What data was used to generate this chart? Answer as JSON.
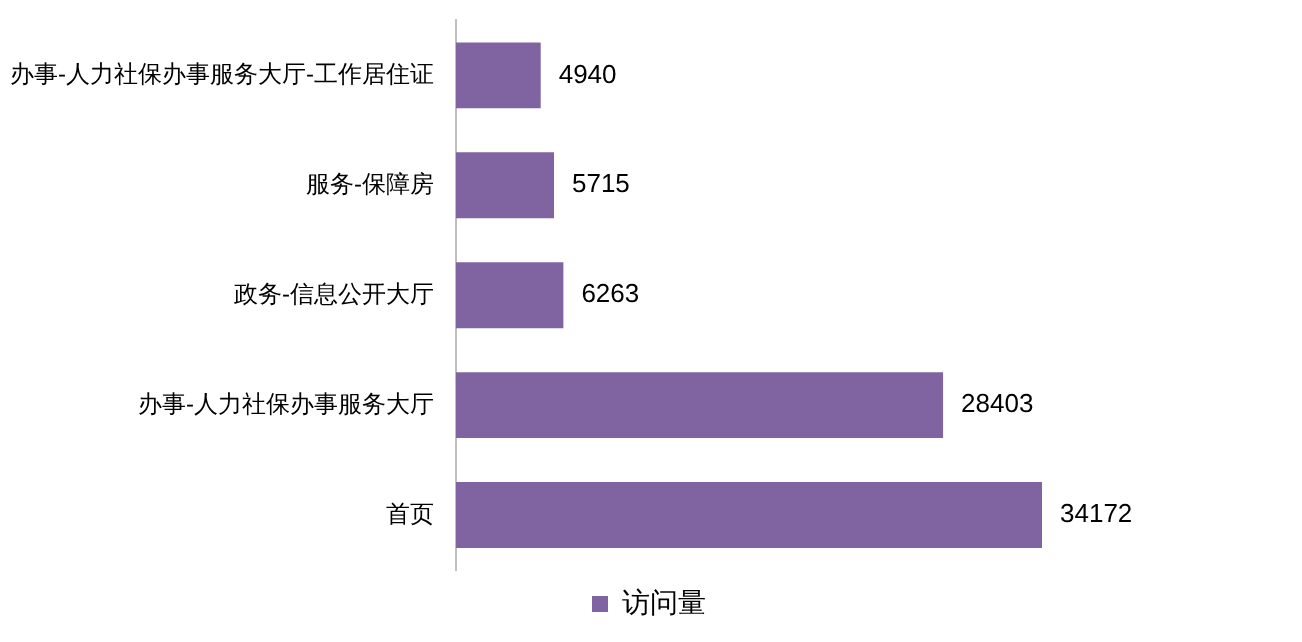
{
  "chart_data": {
    "type": "bar",
    "orientation": "horizontal",
    "categories": [
      "办事-人力社保办事服务大厅-工作居住证",
      "服务-保障房",
      "政务-信息公开大厅",
      "办事-人力社保办事服务大厅",
      "首页"
    ],
    "series": [
      {
        "name": "访问量",
        "color": "#8064a2",
        "values": [
          4940,
          5715,
          6263,
          28403,
          34172
        ]
      }
    ],
    "data_labels": true,
    "legend": "bottom"
  }
}
